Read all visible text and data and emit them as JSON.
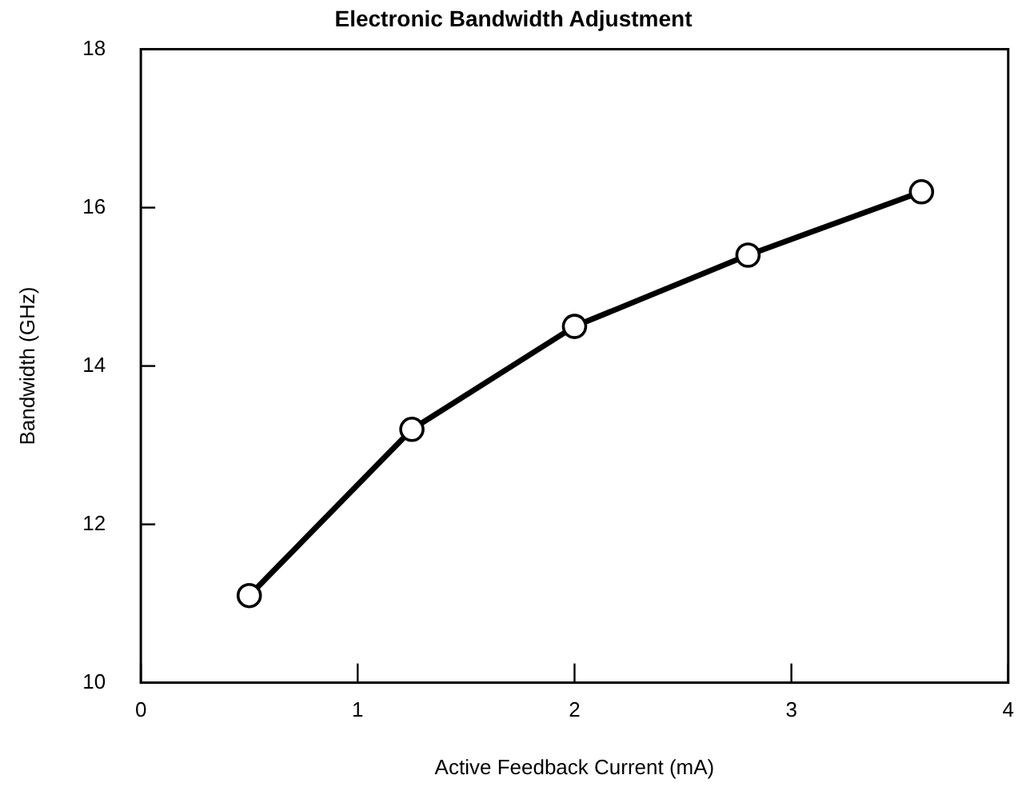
{
  "chart_data": {
    "type": "line",
    "title": "Electronic Bandwidth Adjustment",
    "xlabel": "Active Feedback Current (mA)",
    "ylabel": "Bandwidth (GHz)",
    "x": [
      0.5,
      1.25,
      2.0,
      2.8,
      3.6
    ],
    "series": [
      {
        "color": "#000000",
        "values": [
          11.1,
          13.2,
          14.5,
          15.4,
          16.2
        ]
      }
    ],
    "xlim": [
      0,
      4
    ],
    "xticks": [
      0,
      1,
      2,
      3,
      4
    ],
    "ylim": [
      10,
      18
    ],
    "yticks": [
      10,
      12,
      14,
      16,
      18
    ],
    "grid": false,
    "legend": false,
    "marker": "circle",
    "line_style": "solid"
  }
}
